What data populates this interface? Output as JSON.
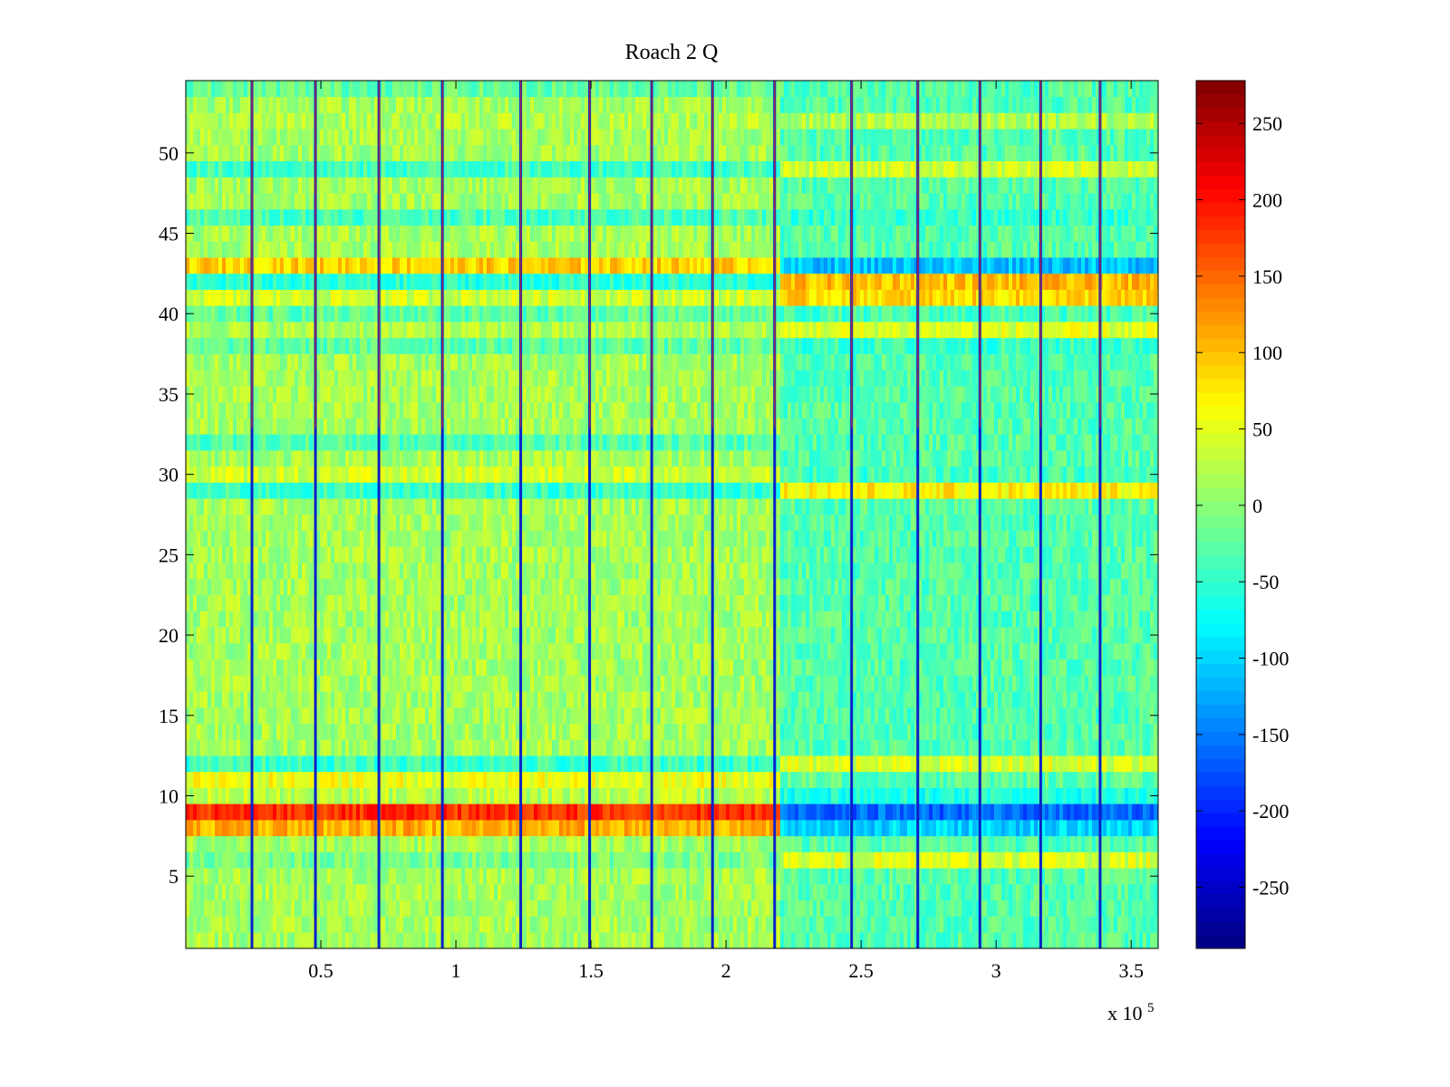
{
  "chart_data": {
    "type": "heatmap",
    "title": "Roach 2 Q",
    "xlabel": "",
    "ylabel": "",
    "x_exponent_label": "x 10",
    "x_exponent_power": "5",
    "xlim": [
      0,
      3.6
    ],
    "ylim": [
      0.5,
      54.5
    ],
    "x_ticks": [
      0.5,
      1,
      1.5,
      2,
      2.5,
      3,
      3.5
    ],
    "x_tick_labels": [
      "0.5",
      "1",
      "1.5",
      "2",
      "2.5",
      "3",
      "3.5"
    ],
    "y_ticks": [
      5,
      10,
      15,
      20,
      25,
      30,
      35,
      40,
      45,
      50
    ],
    "y_tick_labels": [
      "5",
      "10",
      "15",
      "20",
      "25",
      "30",
      "35",
      "40",
      "45",
      "50"
    ],
    "rows": 54,
    "colormap": "jet",
    "clim": [
      -290,
      278
    ],
    "colorbar_ticks": [
      250,
      200,
      150,
      100,
      50,
      0,
      -50,
      -100,
      -150,
      -200,
      -250
    ],
    "colorbar_tick_labels": [
      "250",
      "200",
      "150",
      "100",
      "50",
      "0",
      "-50",
      "-100",
      "-150",
      "-200",
      "-250"
    ],
    "vertical_stripes_x": [
      0.245,
      0.48,
      0.715,
      0.95,
      1.24,
      1.495,
      1.725,
      1.95,
      2.18,
      2.465,
      2.71,
      2.94,
      3.165,
      3.385
    ],
    "segments": [
      {
        "x_start": 0,
        "x_end": 2.2,
        "base_value": 15,
        "row_means": {
          "6": -10,
          "8": 110,
          "9": 180,
          "10": 25,
          "11": 55,
          "12": -45,
          "29": -45,
          "30": 40,
          "32": -30,
          "38": -25,
          "39": 20,
          "40": -25,
          "41": 40,
          "42": -55,
          "43": 90,
          "46": -35,
          "49": -40,
          "52": 20,
          "54": -20
        }
      },
      {
        "x_start": 2.2,
        "x_end": 3.6,
        "base_value": -30,
        "row_means": {
          "6": 45,
          "8": -100,
          "9": -160,
          "10": -60,
          "11": -25,
          "12": 45,
          "29": 70,
          "30": -40,
          "38": -45,
          "39": 45,
          "40": -40,
          "41": 85,
          "42": 100,
          "43": -110,
          "46": -50,
          "49": 40,
          "52": 20
        }
      }
    ]
  }
}
